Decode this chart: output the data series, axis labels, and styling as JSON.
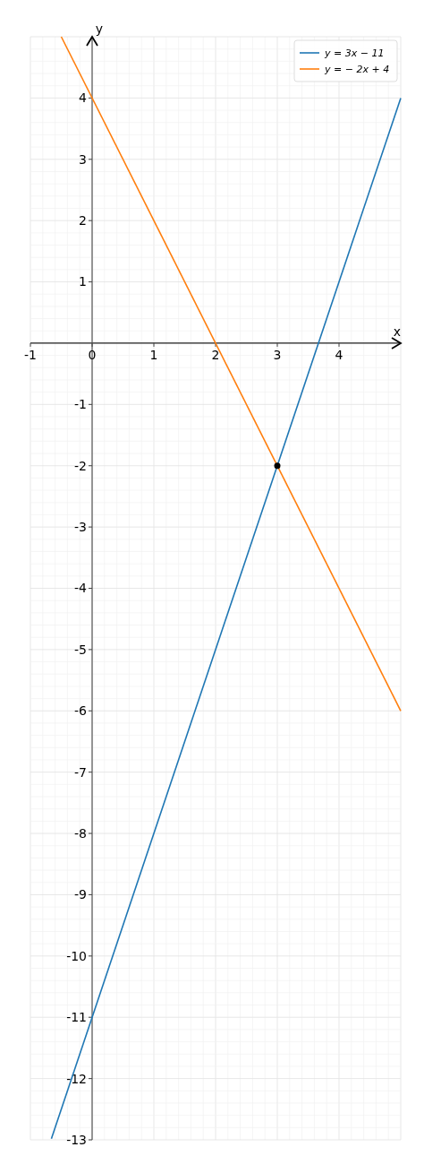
{
  "chart_data": {
    "type": "line",
    "xlabel": "x",
    "ylabel": "y",
    "xlim": [
      -1,
      5
    ],
    "ylim": [
      -13,
      5
    ],
    "xticks": [
      -1,
      0,
      1,
      2,
      3,
      4
    ],
    "yticks": [
      -13,
      -12,
      -11,
      -10,
      -9,
      -8,
      -7,
      -6,
      -5,
      -4,
      -3,
      -2,
      -1,
      1,
      2,
      3,
      4
    ],
    "grid": true,
    "legend": "top right",
    "series": [
      {
        "name": "y = 3x − 11",
        "color": "#1f77b4",
        "x": [
          -0.66,
          5
        ],
        "values": [
          -12.98,
          4
        ]
      },
      {
        "name": "y = − 2x + 4",
        "color": "#ff7f0e",
        "x": [
          -0.5,
          5
        ],
        "values": [
          5,
          -6
        ]
      },
      {
        "type": "scatter",
        "color": "#000000",
        "x": [
          3
        ],
        "values": [
          -2
        ],
        "marker": "circle"
      }
    ]
  }
}
